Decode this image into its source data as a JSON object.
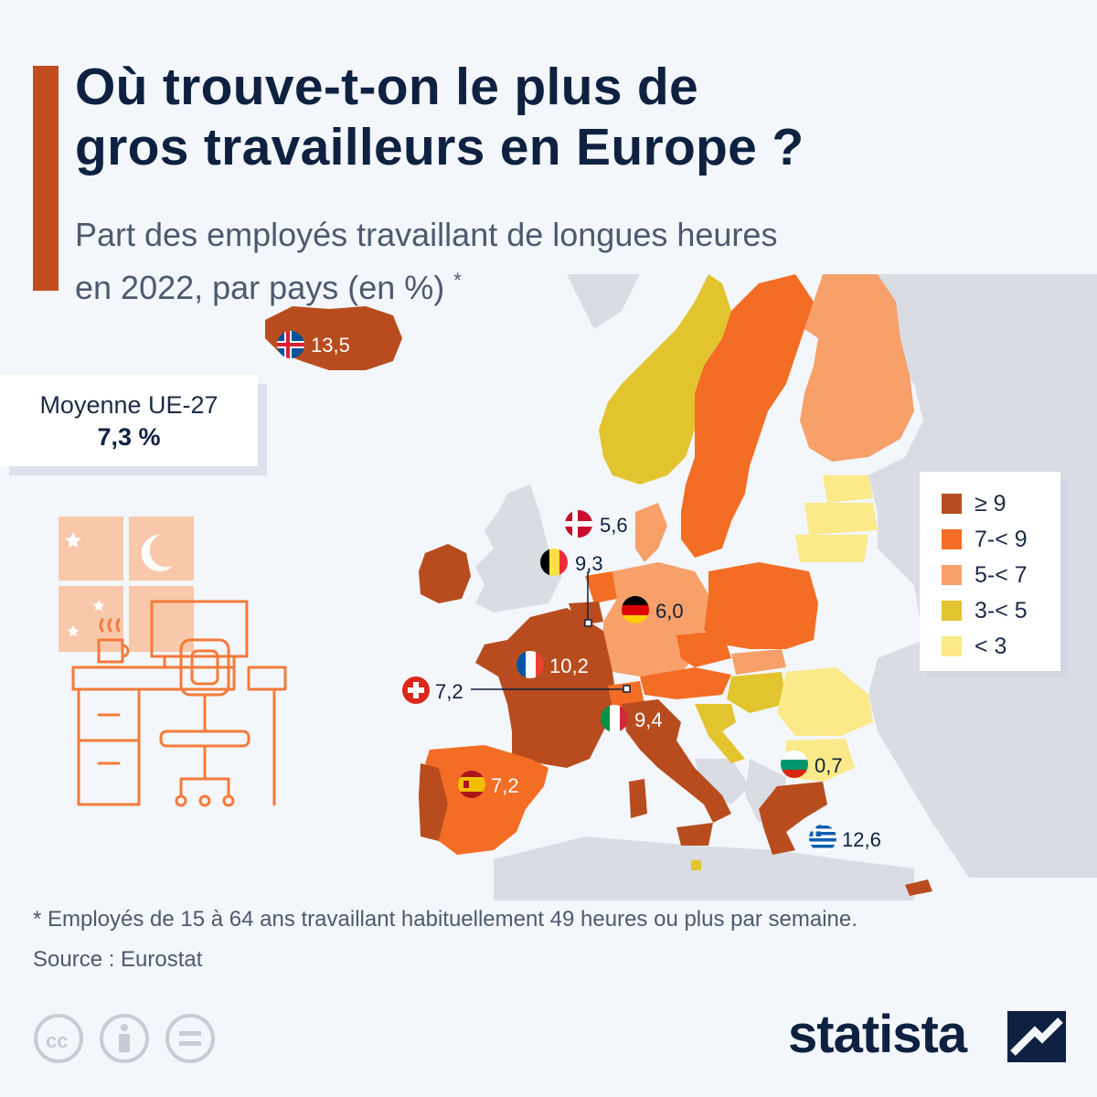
{
  "header": {
    "title_line1": "Où trouve-t-on le plus de",
    "title_line2": "gros travailleurs en Europe ?",
    "subtitle_line1": "Part des employés travaillant de longues heures",
    "subtitle_line2": "en 2022, par pays (en %)",
    "subtitle_mark": "*"
  },
  "eu_average": {
    "label": "Moyenne UE-27",
    "value": "7,3 %"
  },
  "legend": {
    "items": [
      {
        "label": "≥ 9",
        "color": "#b84c1e"
      },
      {
        "label": "7-< 9",
        "color": "#f46d24"
      },
      {
        "label": "5-< 7",
        "color": "#f7a06a"
      },
      {
        "label": "3-< 5",
        "color": "#e2c42f"
      },
      {
        "label": "< 3",
        "color": "#fbe98a"
      }
    ]
  },
  "map_data": {
    "type": "choropleth",
    "unit": "%",
    "labeled_countries": [
      {
        "country": "Islande",
        "flag": "iceland-flag",
        "value": 13.5,
        "label": "13,5"
      },
      {
        "country": "Danemark",
        "flag": "denmark-flag",
        "value": 5.6,
        "label": "5,6"
      },
      {
        "country": "Belgique",
        "flag": "belgium-flag",
        "value": 9.3,
        "label": "9,3"
      },
      {
        "country": "Allemagne",
        "flag": "germany-flag",
        "value": 6.0,
        "label": "6,0"
      },
      {
        "country": "France",
        "flag": "france-flag",
        "value": 10.2,
        "label": "10,2"
      },
      {
        "country": "Suisse",
        "flag": "switzerland-flag",
        "value": 7.2,
        "label": "7,2"
      },
      {
        "country": "Italie",
        "flag": "italy-flag",
        "value": 9.4,
        "label": "9,4"
      },
      {
        "country": "Bulgarie",
        "flag": "bulgaria-flag",
        "value": 0.7,
        "label": "0,7"
      },
      {
        "country": "Espagne",
        "flag": "spain-flag",
        "value": 7.2,
        "label": "7,2"
      },
      {
        "country": "Grèce",
        "flag": "greece-flag",
        "value": 12.6,
        "label": "12,6"
      }
    ],
    "colors": {
      "non_data_land": "#d9dde3",
      "background": "#f3f6fa"
    }
  },
  "footer": {
    "footnote": "* Employés de 15 à 64 ans travaillant habituellement 49 heures ou plus par semaine.",
    "source": "Source : Eurostat",
    "logo": "statista",
    "license_icons": [
      "cc-icon",
      "attribution-icon",
      "noderivs-icon"
    ]
  }
}
